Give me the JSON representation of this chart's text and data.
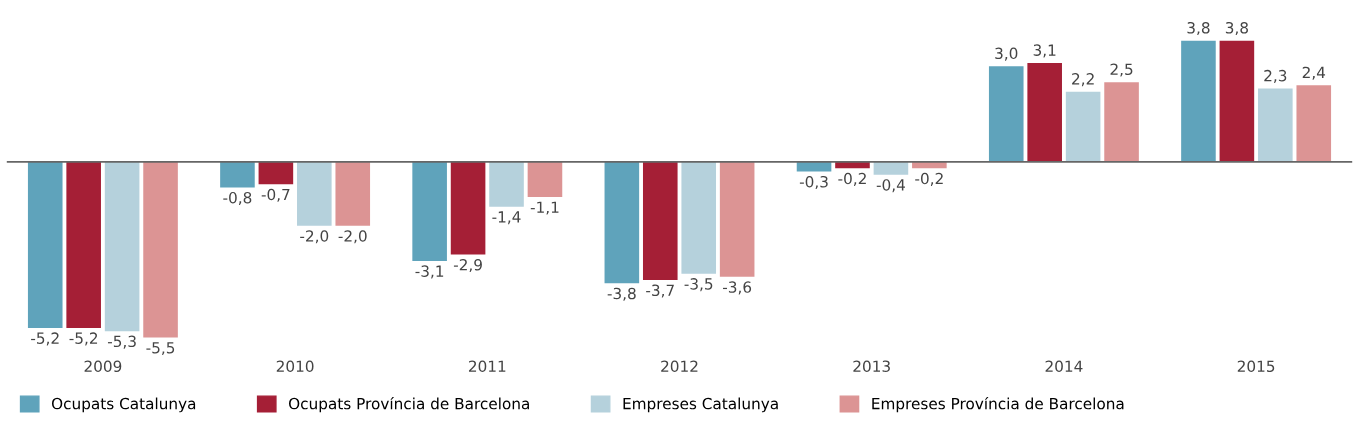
{
  "chart_data": {
    "type": "bar",
    "categories": [
      "2009",
      "2010",
      "2011",
      "2012",
      "2013",
      "2014",
      "2015"
    ],
    "series": [
      {
        "name": "Ocupats Catalunya",
        "color": "#5fa3bb",
        "values": [
          -5.2,
          -0.8,
          -3.1,
          -3.8,
          -0.3,
          3.0,
          3.8
        ],
        "value_labels": [
          "-5,2",
          "-0,8",
          "-3,1",
          "-3,8",
          "-0,3",
          "3,0",
          "3,8"
        ]
      },
      {
        "name": "Ocupats Província de Barcelona",
        "color": "#a51f36",
        "values": [
          -5.2,
          -0.7,
          -2.9,
          -3.7,
          -0.2,
          3.1,
          3.8
        ],
        "value_labels": [
          "-5,2",
          "-0,7",
          "-2,9",
          "-3,7",
          "-0,2",
          "3,1",
          "3,8"
        ]
      },
      {
        "name": "Empreses Catalunya",
        "color": "#b5d1dc",
        "values": [
          -5.3,
          -2.0,
          -1.4,
          -3.5,
          -0.4,
          2.2,
          2.3
        ],
        "value_labels": [
          "-5,3",
          "-2,0",
          "-1,4",
          "-3,5",
          "-0,4",
          "2,2",
          "2,3"
        ]
      },
      {
        "name": "Empreses Província de Barcelona",
        "color": "#dc9494",
        "values": [
          -5.5,
          -2.0,
          -1.1,
          -3.6,
          -0.2,
          2.5,
          2.4
        ],
        "value_labels": [
          "-5,5",
          "-2,0",
          "-1,1",
          "-3,6",
          "-0,2",
          "2,5",
          "2,4"
        ]
      }
    ],
    "legend": "bottom",
    "grid": false
  }
}
